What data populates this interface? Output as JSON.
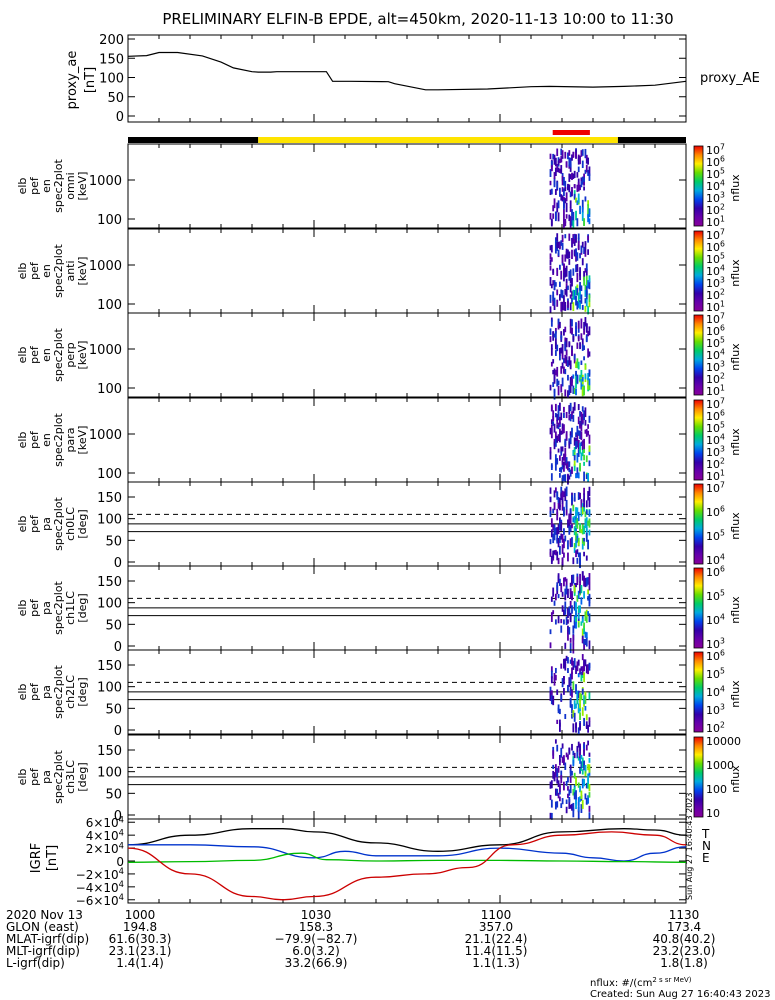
{
  "title": "PRELIMINARY ELFIN-B EPDE, alt=450km, 2020-11-13 10:00 to 11:30",
  "colors": {
    "ink": "#000000",
    "bar_black": "#000000",
    "bar_yellow": "#ffe400",
    "bar_red": "#ee0000",
    "grf_x": "#cc0000",
    "grf_y": "#0033cc",
    "grf_z": "#00bb00",
    "grf_total": "#000000"
  },
  "colorbar_gradient": [
    "#ee0000",
    "#ff8800",
    "#ffee00",
    "#66dd00",
    "#00cc66",
    "#00aadd",
    "#0044ee",
    "#3300aa",
    "#6600aa",
    "#880099"
  ],
  "proxy_ae": {
    "ylabel_line1": "proxy_ae",
    "ylabel_line2": "[nT]",
    "right_label": "proxy_AE",
    "yticks": [
      "200",
      "150",
      "100",
      "50",
      "0"
    ]
  },
  "panels": [
    {
      "name": "omni",
      "ylabel": [
        "elb",
        "pef",
        "en",
        "spec2plot",
        "omni",
        "[keV]"
      ],
      "yticks": [
        "1000",
        "100"
      ],
      "cb_ticks": [
        "10^7",
        "10^6",
        "10^5",
        "10^4",
        "10^3",
        "10^2",
        "10^1"
      ],
      "cb_label": "nflux"
    },
    {
      "name": "anti",
      "ylabel": [
        "elb",
        "pef",
        "en",
        "spec2plot",
        "anti",
        "[keV]"
      ],
      "yticks": [
        "1000",
        "100"
      ],
      "cb_ticks": [
        "10^7",
        "10^6",
        "10^5",
        "10^4",
        "10^3",
        "10^2",
        "10^1"
      ],
      "cb_label": "nflux"
    },
    {
      "name": "perp",
      "ylabel": [
        "elb",
        "pef",
        "en",
        "spec2plot",
        "perp",
        "[keV]"
      ],
      "yticks": [
        "1000",
        "100"
      ],
      "cb_ticks": [
        "10^7",
        "10^6",
        "10^5",
        "10^4",
        "10^3",
        "10^2",
        "10^1"
      ],
      "cb_label": "nflux"
    },
    {
      "name": "para",
      "ylabel": [
        "elb",
        "pef",
        "en",
        "spec2plot",
        "para",
        "[keV]"
      ],
      "yticks": [
        "1000",
        "100"
      ],
      "cb_ticks": [
        "10^7",
        "10^6",
        "10^5",
        "10^4",
        "10^3",
        "10^2",
        "10^1"
      ],
      "cb_label": "nflux"
    },
    {
      "name": "ch0LC",
      "ylabel": [
        "elb",
        "pef",
        "pa",
        "spec2plot",
        "ch0LC",
        "[deg]"
      ],
      "yticks": [
        "150",
        "100",
        "50",
        "0"
      ],
      "cb_ticks": [
        "10^7",
        "10^6",
        "10^5",
        "10^4"
      ],
      "cb_label": "nflux"
    },
    {
      "name": "ch1LC",
      "ylabel": [
        "elb",
        "pef",
        "pa",
        "spec2plot",
        "ch1LC",
        "[deg]"
      ],
      "yticks": [
        "150",
        "100",
        "50",
        "0"
      ],
      "cb_ticks": [
        "10^6",
        "10^5",
        "10^4",
        "10^3"
      ],
      "cb_label": "nflux"
    },
    {
      "name": "ch2LC",
      "ylabel": [
        "elb",
        "pef",
        "pa",
        "spec2plot",
        "ch2LC",
        "[deg]"
      ],
      "yticks": [
        "150",
        "100",
        "50",
        "0"
      ],
      "cb_ticks": [
        "10^6",
        "10^5",
        "10^4",
        "10^3",
        "10^2"
      ],
      "cb_label": "nflux"
    },
    {
      "name": "ch3LC",
      "ylabel": [
        "elb",
        "pef",
        "pa",
        "spec2plot",
        "ch3LC",
        "[deg]"
      ],
      "yticks": [
        "150",
        "100",
        "50",
        "0"
      ],
      "cb_ticks": [
        "10000",
        "1000",
        "100",
        "10"
      ],
      "cb_label": "nflux"
    }
  ],
  "grf": {
    "ylabel_line1": "IGRF",
    "ylabel_line2": "[nT]",
    "yticks": [
      "6×10^4",
      "4×10^4",
      "2×10^4",
      "0",
      "−2×10^4",
      "−4×10^4",
      "−6×10^4"
    ],
    "legend": [
      "T",
      "N",
      "E"
    ],
    "side_note": "Sun Aug 27 16:40:43 2023"
  },
  "footer": {
    "rows": [
      {
        "label": "2020 Nov 13",
        "vals": [
          "1000",
          "1030",
          "1100",
          "1130"
        ]
      },
      {
        "label": "GLON (east)",
        "vals": [
          "194.8",
          "158.3",
          "357.0",
          "173.4"
        ]
      },
      {
        "label": "MLAT-igrf(dip)",
        "vals": [
          "61.6(30.3)",
          "−79.9(−82.7)",
          "21.1(22.4)",
          "40.8(40.2)"
        ]
      },
      {
        "label": "MLT-igrf(dip)",
        "vals": [
          "23.1(23.1)",
          "6.0(3.2)",
          "11.4(11.5)",
          "23.2(23.0)"
        ]
      },
      {
        "label": "L-igrf(dip)",
        "vals": [
          "1.4(1.4)",
          "33.2(66.9)",
          "1.1(1.3)",
          "1.8(1.8)"
        ]
      }
    ],
    "note1": "nflux: #/(cm^2 s sr MeV)",
    "note2": "Created: Sun Aug 27 16:40:43 2023"
  },
  "chart_data": {
    "type": "line",
    "title": "PRELIMINARY ELFIN-B EPDE, alt=450km, 2020-11-13 10:00 to 11:30",
    "x_unit": "minutes after 10:00 UT",
    "xlim": [
      0,
      90
    ],
    "proxy_ae": {
      "ylim": [
        0,
        200
      ],
      "x": [
        0,
        3,
        5,
        8,
        12,
        15,
        17,
        20,
        21,
        23,
        24,
        28,
        32,
        33,
        36,
        42,
        43,
        48,
        50,
        58,
        65,
        68,
        75,
        80,
        85,
        90
      ],
      "y": [
        155,
        157,
        165,
        165,
        156,
        140,
        125,
        115,
        114,
        114,
        115,
        115,
        115,
        90,
        90,
        89,
        84,
        68,
        68,
        70,
        76,
        77,
        75,
        77,
        80,
        90
      ]
    },
    "orbit_bar": {
      "black": [
        [
          0,
          21
        ],
        [
          79,
          90
        ]
      ],
      "yellow": [
        [
          21,
          79
        ]
      ],
      "red": [
        [
          68.5,
          74.5
        ]
      ]
    },
    "spectrogram_time_range": [
      68,
      74.5
    ],
    "loss_cone_deg": {
      "dashed": 110,
      "solid": [
        88,
        70
      ]
    },
    "igrf": {
      "ylim": [
        -65000,
        65000
      ],
      "series": [
        {
          "name": "T",
          "x": [
            0,
            10,
            20,
            25,
            30,
            40,
            50,
            60,
            70,
            80,
            85,
            90
          ],
          "y": [
            25000,
            40000,
            50000,
            50000,
            45000,
            28000,
            15000,
            25000,
            45000,
            50000,
            48000,
            40000
          ]
        },
        {
          "name": "N",
          "x": [
            0,
            10,
            20,
            30,
            35,
            40,
            50,
            60,
            70,
            75,
            80,
            85,
            90
          ],
          "y": [
            25000,
            25000,
            22000,
            5000,
            15000,
            8000,
            8000,
            20000,
            12000,
            5000,
            0,
            12000,
            22000
          ]
        },
        {
          "name": "E",
          "x": [
            0,
            10,
            20,
            28,
            32,
            40,
            50,
            60,
            70,
            80,
            90
          ],
          "y": [
            -2000,
            -1000,
            1000,
            12000,
            2000,
            0,
            1000,
            1000,
            0,
            -1000,
            -2000
          ]
        },
        {
          "name": "X",
          "x": [
            0,
            10,
            20,
            25,
            30,
            40,
            48,
            55,
            62,
            70,
            78,
            85,
            90
          ],
          "y": [
            20000,
            -20000,
            -55000,
            -60000,
            -55000,
            -25000,
            -20000,
            -10000,
            25000,
            40000,
            45000,
            40000,
            25000
          ]
        }
      ]
    }
  }
}
